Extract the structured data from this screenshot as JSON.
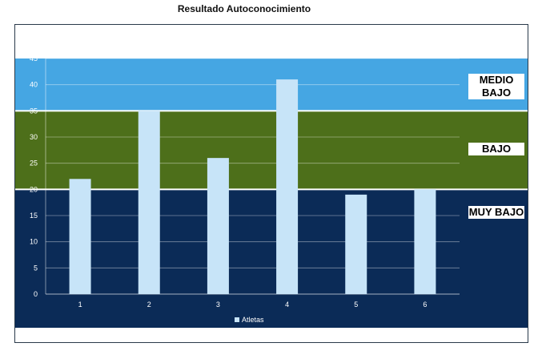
{
  "chart_data": {
    "type": "bar",
    "title": "Resultado Autoconocimiento",
    "categories": [
      "1",
      "2",
      "3",
      "4",
      "5",
      "6"
    ],
    "series": [
      {
        "name": "Atletas",
        "values": [
          22,
          35,
          26,
          41,
          19,
          20
        ]
      }
    ],
    "ylim": [
      0,
      45
    ],
    "yticks": [
      0,
      5,
      10,
      15,
      20,
      25,
      30,
      35,
      40,
      45
    ],
    "grid": true,
    "legend": "bottom",
    "bands": [
      {
        "label": "MUY BAJO",
        "from": 0,
        "to": 20,
        "color": "#0b2b57"
      },
      {
        "label": "BAJO",
        "from": 20,
        "to": 35,
        "color": "#4d6f1a"
      },
      {
        "label": "MEDIO BAJO",
        "from": 35,
        "to": 45,
        "color": "#45a6e3"
      }
    ],
    "bar_color": "#c7e4f8"
  }
}
